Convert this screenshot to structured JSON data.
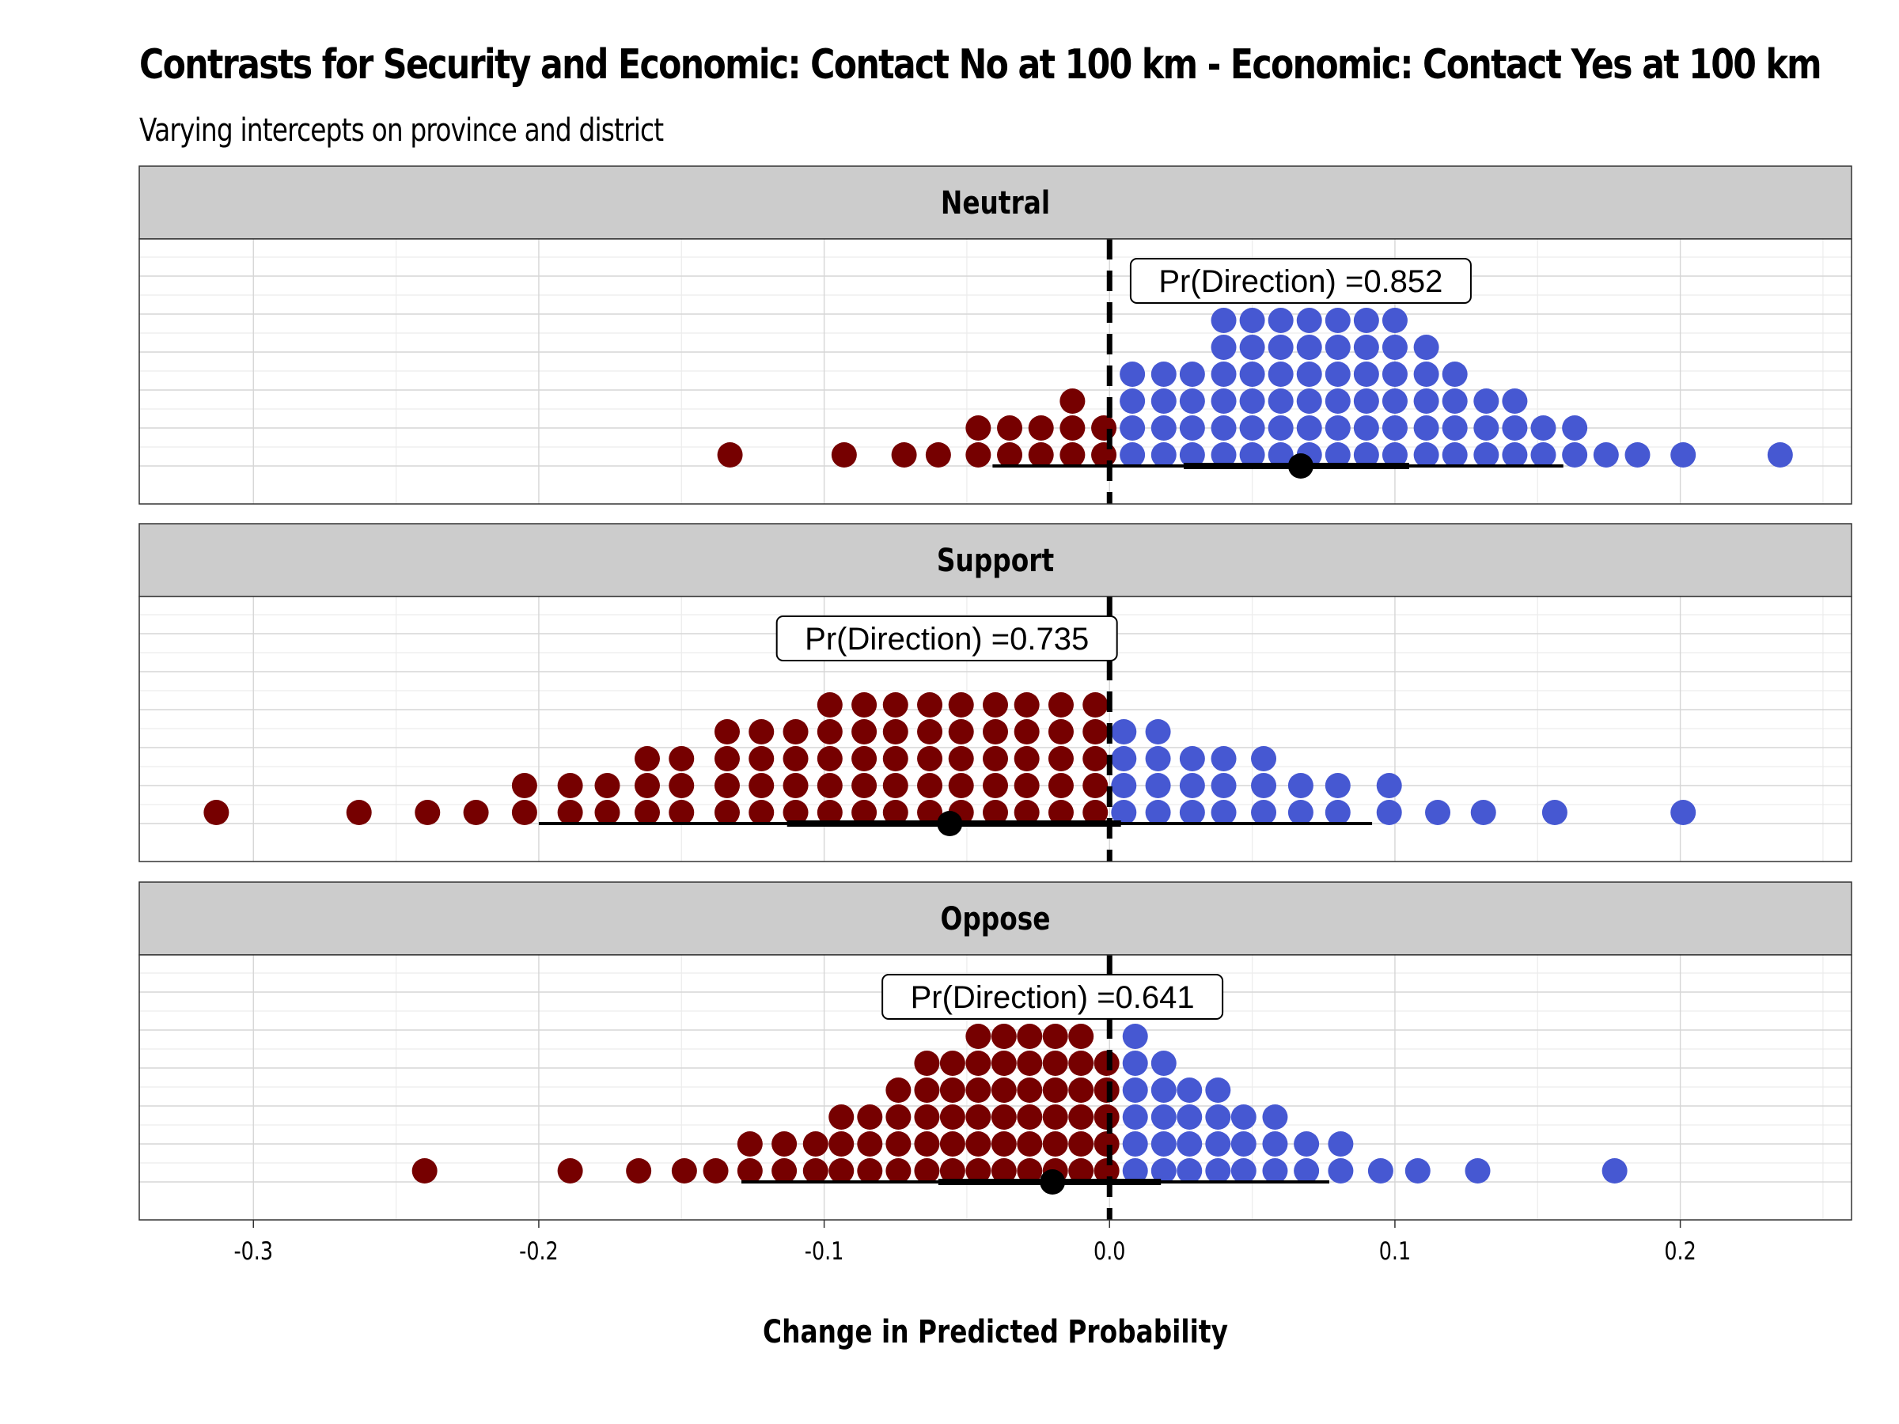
{
  "chart_data": {
    "type": "dotplot",
    "title": "Contrasts for Security and Economic: Contact No at 100 km - Economic: Contact Yes at 100 km",
    "subtitle": "Varying intercepts on province and district",
    "xlabel": "Change in Predicted Probability",
    "xlim": [
      -0.34,
      0.26
    ],
    "xticks": [
      -0.3,
      -0.2,
      -0.1,
      0.0,
      0.1,
      0.2
    ],
    "xtick_labels": [
      "-0.3",
      "-0.2",
      "-0.1",
      "0.0",
      "0.1",
      "0.2"
    ],
    "reference_line": 0.0,
    "grid": true,
    "colors": {
      "negative": "#760000",
      "positive": "#4658d2",
      "strip_fill": "#cccccc",
      "interval": "#000000"
    },
    "panels": [
      {
        "label": "Neutral",
        "pd_label": "Pr(Direction) =0.852",
        "pd_x": 0.067,
        "point": 0.067,
        "interval_66": [
          0.026,
          0.105
        ],
        "interval_95": [
          -0.041,
          0.159
        ],
        "dots": [
          [
            -0.133,
            1
          ],
          [
            -0.093,
            1
          ],
          [
            -0.072,
            1
          ],
          [
            -0.06,
            1
          ],
          [
            -0.046,
            2
          ],
          [
            -0.035,
            2
          ],
          [
            -0.024,
            2
          ],
          [
            -0.013,
            3
          ],
          [
            -0.002,
            2
          ],
          [
            0.008,
            4
          ],
          [
            0.019,
            4
          ],
          [
            0.029,
            4
          ],
          [
            0.04,
            6
          ],
          [
            0.05,
            6
          ],
          [
            0.06,
            6
          ],
          [
            0.07,
            6
          ],
          [
            0.08,
            6
          ],
          [
            0.09,
            6
          ],
          [
            0.1,
            6
          ],
          [
            0.111,
            5
          ],
          [
            0.121,
            4
          ],
          [
            0.132,
            3
          ],
          [
            0.142,
            3
          ],
          [
            0.152,
            2
          ],
          [
            0.163,
            2
          ],
          [
            0.174,
            1
          ],
          [
            0.185,
            1
          ],
          [
            0.201,
            1
          ],
          [
            0.235,
            1
          ]
        ]
      },
      {
        "label": "Support",
        "pd_label": "Pr(Direction) =0.735",
        "pd_x": -0.057,
        "point": -0.056,
        "interval_66": [
          -0.113,
          0.004
        ],
        "interval_95": [
          -0.2,
          0.092
        ],
        "dots": [
          [
            -0.313,
            1
          ],
          [
            -0.263,
            1
          ],
          [
            -0.239,
            1
          ],
          [
            -0.222,
            1
          ],
          [
            -0.205,
            2
          ],
          [
            -0.189,
            2
          ],
          [
            -0.176,
            2
          ],
          [
            -0.162,
            3
          ],
          [
            -0.15,
            3
          ],
          [
            -0.134,
            4
          ],
          [
            -0.122,
            4
          ],
          [
            -0.11,
            4
          ],
          [
            -0.098,
            5
          ],
          [
            -0.086,
            5
          ],
          [
            -0.075,
            5
          ],
          [
            -0.063,
            5
          ],
          [
            -0.052,
            5
          ],
          [
            -0.04,
            5
          ],
          [
            -0.029,
            5
          ],
          [
            -0.017,
            5
          ],
          [
            -0.005,
            5
          ],
          [
            0.005,
            4
          ],
          [
            0.017,
            4
          ],
          [
            0.029,
            3
          ],
          [
            0.04,
            3
          ],
          [
            0.054,
            3
          ],
          [
            0.067,
            2
          ],
          [
            0.08,
            2
          ],
          [
            0.098,
            2
          ],
          [
            0.115,
            1
          ],
          [
            0.131,
            1
          ],
          [
            0.156,
            1
          ],
          [
            0.201,
            1
          ]
        ]
      },
      {
        "label": "Oppose",
        "pd_label": "Pr(Direction) =0.641",
        "pd_x": -0.02,
        "point": -0.02,
        "interval_66": [
          -0.06,
          0.018
        ],
        "interval_95": [
          -0.129,
          0.077
        ],
        "dots": [
          [
            -0.24,
            1
          ],
          [
            -0.189,
            1
          ],
          [
            -0.165,
            1
          ],
          [
            -0.149,
            1
          ],
          [
            -0.138,
            1
          ],
          [
            -0.126,
            2
          ],
          [
            -0.114,
            2
          ],
          [
            -0.103,
            2
          ],
          [
            -0.094,
            3
          ],
          [
            -0.084,
            3
          ],
          [
            -0.074,
            4
          ],
          [
            -0.064,
            5
          ],
          [
            -0.055,
            5
          ],
          [
            -0.046,
            6
          ],
          [
            -0.037,
            6
          ],
          [
            -0.028,
            6
          ],
          [
            -0.019,
            6
          ],
          [
            -0.01,
            6
          ],
          [
            -0.001,
            5
          ],
          [
            0.009,
            6
          ],
          [
            0.019,
            5
          ],
          [
            0.028,
            4
          ],
          [
            0.038,
            4
          ],
          [
            0.047,
            3
          ],
          [
            0.058,
            3
          ],
          [
            0.069,
            2
          ],
          [
            0.081,
            2
          ],
          [
            0.095,
            1
          ],
          [
            0.108,
            1
          ],
          [
            0.129,
            1
          ],
          [
            0.177,
            1
          ]
        ]
      }
    ]
  }
}
